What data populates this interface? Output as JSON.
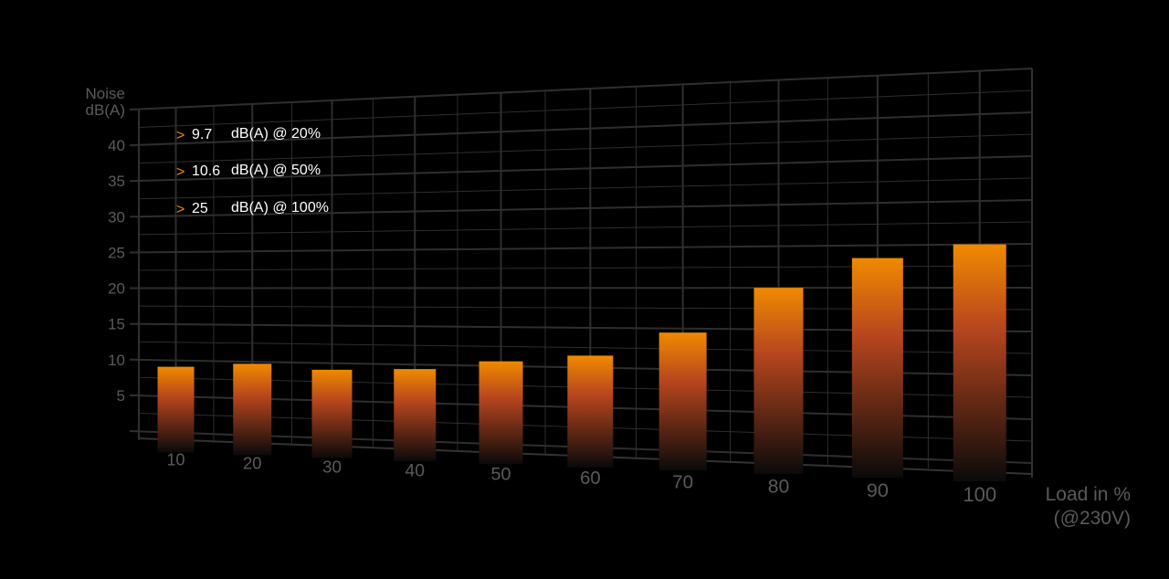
{
  "chart_data": {
    "type": "bar",
    "ylabel": "Noise\ndB(A)",
    "ylabel_lines": [
      "Noise",
      "dB(A)"
    ],
    "xlabel_lines": [
      "Load in %",
      "(@230V)"
    ],
    "categories": [
      "10",
      "20",
      "30",
      "40",
      "50",
      "60",
      "70",
      "80",
      "90",
      "100"
    ],
    "values": [
      9.1,
      9.7,
      9.1,
      9.4,
      10.6,
      11.5,
      14.5,
      20,
      23.5,
      25
    ],
    "yticks": [
      "5",
      "10",
      "15",
      "20",
      "25",
      "30",
      "35",
      "40"
    ],
    "ylim": [
      0,
      45
    ],
    "grid": true,
    "annotations": [
      {
        "marker": ">",
        "value": "9.7",
        "text": "dB(A) @ 20%"
      },
      {
        "marker": ">",
        "value": "10.6",
        "text": "dB(A) @ 50%"
      },
      {
        "marker": ">",
        "value": "25",
        "text": "dB(A) @ 100%"
      }
    ],
    "colors": {
      "bar_top": "#f08a00",
      "bar_mid": "#b8461e",
      "bar_bottom": "#0a0a0a",
      "grid": "#2e2e2e",
      "background": "#000000"
    }
  }
}
